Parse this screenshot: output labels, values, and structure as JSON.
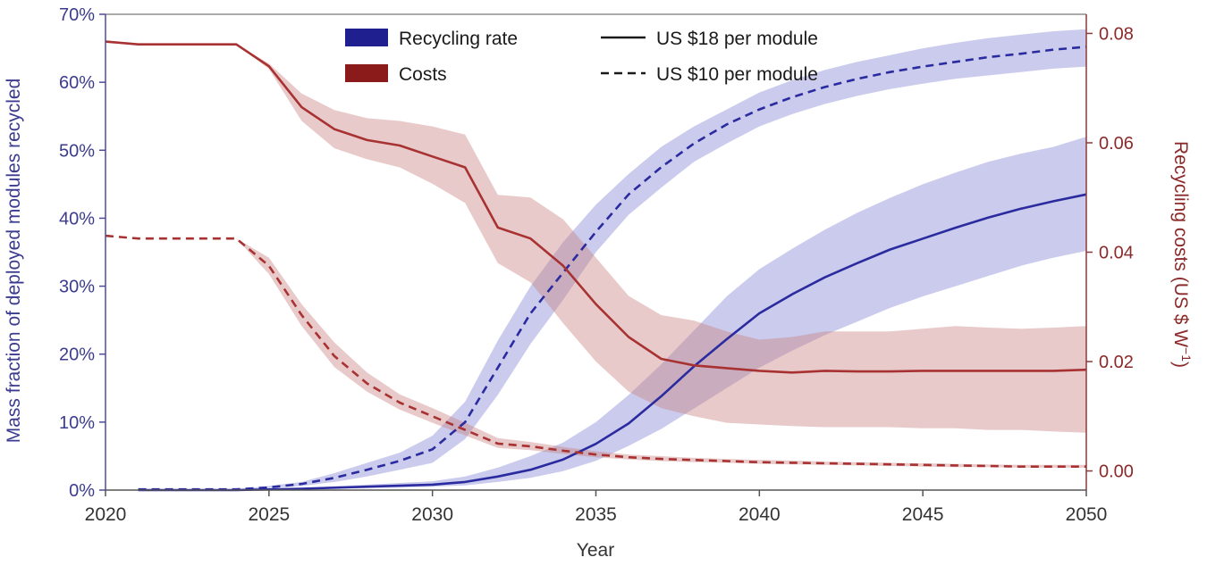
{
  "chart_data": {
    "type": "line",
    "xlabel": "Year",
    "ylabel_left": "Mass fraction of deployed modules recycled",
    "ylabel_right_main": "Recycling costs (US $ W",
    "ylabel_right_sup": "−1",
    "ylabel_right_close": ")",
    "xlim": [
      2020,
      2050
    ],
    "ylim_left": [
      0,
      70
    ],
    "ylim_right": [
      -0.0035,
      0.0835
    ],
    "x_ticks": [
      2020,
      2025,
      2030,
      2035,
      2040,
      2045,
      2050
    ],
    "x_tick_labels": [
      "2020",
      "2025",
      "2030",
      "2035",
      "2040",
      "2045",
      "2050"
    ],
    "y_left_ticks": [
      0,
      10,
      20,
      30,
      40,
      50,
      60,
      70
    ],
    "y_left_tick_labels": [
      "0%",
      "10%",
      "20%",
      "30%",
      "40%",
      "50%",
      "60%",
      "70%"
    ],
    "y_right_ticks": [
      0,
      0.02,
      0.04,
      0.06,
      0.08
    ],
    "y_right_tick_labels": [
      "0.00",
      "0.02",
      "0.04",
      "0.06",
      "0.08"
    ],
    "grid": false,
    "legend": {
      "position": "top-center",
      "entries": [
        {
          "label": "Recycling rate",
          "kind": "color",
          "color": "#1f1f8f"
        },
        {
          "label": "US $18 per module",
          "kind": "line-solid"
        },
        {
          "label": "Costs",
          "kind": "color",
          "color": "#8b1a1a"
        },
        {
          "label": "US $10 per module",
          "kind": "line-dashed"
        }
      ]
    },
    "colors": {
      "rate_line": "#2b2ba0",
      "rate_band": "#8c8cd6",
      "cost_line": "#a83232",
      "cost_band": "#c98080",
      "axis_left": "#3b3b8f",
      "axis_right": "#8a2a2a"
    },
    "series": [
      {
        "name": "Recycling rate, US $18 per module",
        "axis": "left",
        "style": "solid",
        "x": [
          2021,
          2024,
          2026,
          2028,
          2030,
          2031,
          2032,
          2033,
          2034,
          2035,
          2036,
          2037,
          2038,
          2039,
          2040,
          2041,
          2042,
          2043,
          2044,
          2045,
          2046,
          2047,
          2048,
          2049,
          2050
        ],
        "y": [
          0,
          0,
          0.2,
          0.5,
          0.8,
          1.2,
          2.0,
          3.0,
          4.5,
          6.8,
          9.8,
          13.8,
          18.2,
          22.2,
          26.0,
          28.8,
          31.3,
          33.4,
          35.4,
          37.0,
          38.6,
          40.1,
          41.4,
          42.5,
          43.5
        ],
        "y_low": [
          0,
          0,
          0.1,
          0.3,
          0.5,
          0.7,
          1.2,
          1.8,
          2.8,
          4.3,
          6.5,
          9.0,
          12.0,
          15.0,
          18.0,
          20.5,
          22.8,
          24.8,
          26.8,
          28.5,
          30.0,
          31.5,
          33.0,
          34.2,
          35.2
        ],
        "y_high": [
          0,
          0,
          0.3,
          0.8,
          1.3,
          2.0,
          3.3,
          5.0,
          7.0,
          10.0,
          14.0,
          18.5,
          23.5,
          28.5,
          32.5,
          35.5,
          38.3,
          40.8,
          43.0,
          45.0,
          46.7,
          48.3,
          49.5,
          50.5,
          52.0
        ]
      },
      {
        "name": "Recycling rate, US $10 per module",
        "axis": "left",
        "style": "dashed",
        "x": [
          2021,
          2024,
          2025,
          2026,
          2027,
          2028,
          2029,
          2030,
          2031,
          2032,
          2033,
          2034,
          2035,
          2036,
          2037,
          2038,
          2039,
          2040,
          2041,
          2042,
          2043,
          2044,
          2045,
          2046,
          2047,
          2048,
          2049,
          2050
        ],
        "y": [
          0.1,
          0.1,
          0.4,
          0.9,
          1.8,
          3.0,
          4.3,
          6.0,
          10.0,
          18.0,
          26.0,
          32.0,
          38.0,
          43.5,
          47.5,
          51.0,
          53.8,
          56.0,
          57.8,
          59.3,
          60.5,
          61.5,
          62.3,
          63.0,
          63.7,
          64.2,
          64.8,
          65.2
        ],
        "y_low": [
          0.1,
          0.1,
          0.3,
          0.6,
          1.2,
          2.0,
          3.0,
          4.0,
          7.5,
          14.0,
          21.5,
          28.0,
          35.0,
          40.5,
          44.5,
          48.3,
          51.0,
          53.5,
          55.3,
          56.8,
          58.0,
          59.0,
          59.8,
          60.5,
          61.0,
          61.5,
          62.0,
          62.3
        ],
        "y_high": [
          0.1,
          0.1,
          0.6,
          1.2,
          2.5,
          4.0,
          5.5,
          8.0,
          13.0,
          22.0,
          30.0,
          36.5,
          42.0,
          46.5,
          50.5,
          53.5,
          56.0,
          58.5,
          60.3,
          61.8,
          63.0,
          64.0,
          65.0,
          65.8,
          66.5,
          67.0,
          67.5,
          67.8
        ]
      },
      {
        "name": "Costs, US $18 per module",
        "axis": "right",
        "style": "solid",
        "x": [
          2020,
          2021,
          2024,
          2025,
          2026,
          2027,
          2028,
          2029,
          2030,
          2031,
          2032,
          2033,
          2034,
          2035,
          2036,
          2037,
          2038,
          2039,
          2040,
          2041,
          2042,
          2043,
          2044,
          2045,
          2046,
          2047,
          2048,
          2049,
          2050
        ],
        "y": [
          0.0785,
          0.078,
          0.078,
          0.074,
          0.0665,
          0.0625,
          0.0605,
          0.0595,
          0.0575,
          0.0555,
          0.0445,
          0.0425,
          0.0375,
          0.0305,
          0.0245,
          0.0205,
          0.0193,
          0.0188,
          0.0183,
          0.018,
          0.0183,
          0.0182,
          0.0182,
          0.0183,
          0.0183,
          0.0183,
          0.0183,
          0.0183,
          0.0185
        ],
        "y_low": [
          0.0785,
          0.078,
          0.078,
          0.0735,
          0.064,
          0.059,
          0.057,
          0.0555,
          0.0525,
          0.049,
          0.038,
          0.0345,
          0.027,
          0.02,
          0.0145,
          0.0115,
          0.01,
          0.0088,
          0.0085,
          0.0082,
          0.008,
          0.008,
          0.008,
          0.0078,
          0.0078,
          0.0075,
          0.0075,
          0.0072,
          0.007
        ],
        "y_high": [
          0.0785,
          0.078,
          0.078,
          0.0745,
          0.069,
          0.066,
          0.0645,
          0.064,
          0.063,
          0.0615,
          0.0505,
          0.05,
          0.046,
          0.039,
          0.032,
          0.0285,
          0.0275,
          0.0255,
          0.024,
          0.0245,
          0.0255,
          0.0255,
          0.0255,
          0.026,
          0.0265,
          0.0262,
          0.026,
          0.0262,
          0.0265
        ]
      },
      {
        "name": "Costs, US $10 per module",
        "axis": "right",
        "style": "dashed",
        "x": [
          2020,
          2021,
          2024,
          2025,
          2026,
          2027,
          2028,
          2029,
          2030,
          2031,
          2032,
          2033,
          2034,
          2035,
          2036,
          2037,
          2038,
          2039,
          2040,
          2041,
          2042,
          2043,
          2044,
          2045,
          2046,
          2047,
          2048,
          2049,
          2050
        ],
        "y": [
          0.043,
          0.0425,
          0.0425,
          0.0375,
          0.0285,
          0.021,
          0.016,
          0.0125,
          0.01,
          0.0075,
          0.005,
          0.0045,
          0.0037,
          0.003,
          0.0025,
          0.0022,
          0.002,
          0.0018,
          0.0016,
          0.0015,
          0.0014,
          0.0013,
          0.0012,
          0.0011,
          0.001,
          0.0009,
          0.0008,
          0.0008,
          0.0008
        ],
        "y_low": [
          0.043,
          0.0425,
          0.0425,
          0.036,
          0.0265,
          0.019,
          0.0145,
          0.0112,
          0.0088,
          0.0065,
          0.0042,
          0.0038,
          0.0031,
          0.0025,
          0.0021,
          0.0018,
          0.0016,
          0.0015,
          0.0013,
          0.0012,
          0.0011,
          0.001,
          0.0009,
          0.0008,
          0.0007,
          0.0007,
          0.0006,
          0.0006,
          0.0006
        ],
        "y_high": [
          0.043,
          0.0425,
          0.0425,
          0.039,
          0.0305,
          0.0235,
          0.018,
          0.014,
          0.0115,
          0.0088,
          0.006,
          0.0053,
          0.0044,
          0.0036,
          0.003,
          0.0027,
          0.0024,
          0.0022,
          0.002,
          0.0019,
          0.0017,
          0.0016,
          0.0015,
          0.0014,
          0.0013,
          0.0012,
          0.0011,
          0.0011,
          0.0011
        ]
      }
    ]
  }
}
